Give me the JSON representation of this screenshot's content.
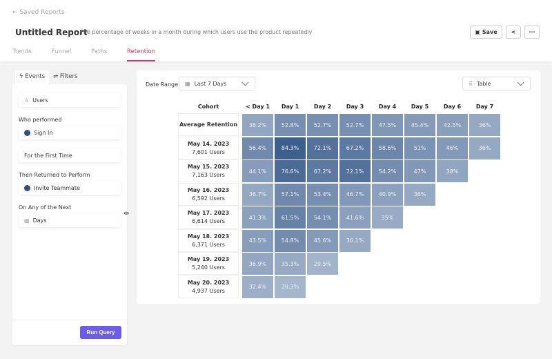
{
  "header": {
    "back_label": "Saved Reports",
    "title": "Untitled Report",
    "description": "The percentage of weeks in a month during which users use the product repeatedly",
    "save_label": "Save"
  },
  "tabs": [
    {
      "label": "Trends"
    },
    {
      "label": "Funnel"
    },
    {
      "label": "Paths"
    },
    {
      "label": "Retention",
      "active": true
    }
  ],
  "sidebar": {
    "tabs": [
      {
        "label": "Events",
        "active": true
      },
      {
        "label": "Filters"
      }
    ],
    "users_field": "Users",
    "who_performed_label": "Who performed",
    "event1": "Sign In",
    "first_time": "For the First Time",
    "returned_label": "Then Returned to Perform",
    "event2": "Invite Teammate",
    "next_label": "On Any of the Next",
    "period": "Days",
    "run_label": "Run Query"
  },
  "toolbar": {
    "date_range_label": "Date Range",
    "date_range_value": "Last 7 Days",
    "view_value": "Table"
  },
  "colors": {
    "accent": "#d6336c",
    "button": "#6c5ce7",
    "event_dot": "#34507a",
    "cell_low": "#a5b5cc",
    "cell_high": "#3d5f8e"
  },
  "table": {
    "cohort_header": "Cohort",
    "columns": [
      "< Day 1",
      "Day 1",
      "Day 2",
      "Day 3",
      "Day 4",
      "Day 5",
      "Day 6",
      "Day 7"
    ],
    "rows": [
      {
        "date": "Average Retention",
        "users": "",
        "values": [
          "38.2%",
          "52.8%",
          "52.7%",
          "52.7%",
          "47.5%",
          "45.4%",
          "42.5%",
          "36%"
        ]
      },
      {
        "date": "May 14. 2023",
        "users": "7,601 Users",
        "values": [
          "56.4%",
          "84.3%",
          "72.1%",
          "67.2%",
          "58.6%",
          "51%",
          "46%",
          "36%"
        ]
      },
      {
        "date": "May 15. 2023",
        "users": "7,163 Users",
        "values": [
          "44.1%",
          "76.6%",
          "67.2%",
          "72.1%",
          "54.2%",
          "47%",
          "38%"
        ]
      },
      {
        "date": "May 16. 2023",
        "users": "6,592 Users",
        "values": [
          "36.7%",
          "57.1%",
          "53.4%",
          "46.7%",
          "40.9%",
          "36%"
        ]
      },
      {
        "date": "May 17. 2023",
        "users": "6,614 Users",
        "values": [
          "41.3%",
          "61.5%",
          "54.1%",
          "41.6%",
          "35%"
        ]
      },
      {
        "date": "May 18. 2023",
        "users": "6,371 Users",
        "values": [
          "43.5%",
          "54.8%",
          "45.6%",
          "36.1%"
        ]
      },
      {
        "date": "May 19. 2023",
        "users": "5,240 Users",
        "values": [
          "36.9%",
          "35.3%",
          "29.5%"
        ]
      },
      {
        "date": "May 20. 2023",
        "users": "4,937 Users",
        "values": [
          "32.4%",
          "28.3%"
        ]
      }
    ]
  }
}
